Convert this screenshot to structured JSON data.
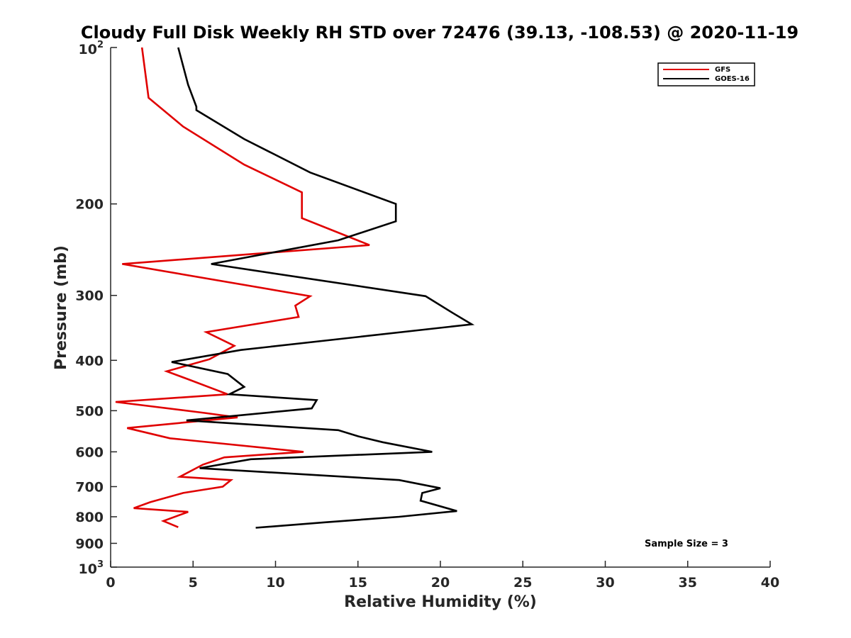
{
  "chart_data": {
    "type": "line",
    "title": "Cloudy Full Disk Weekly RH STD over 72476 (39.13, -108.53) @ 2020-11-19",
    "xlabel": "Relative Humidity (%)",
    "ylabel": "Pressure (mb)",
    "xlim": [
      0,
      40
    ],
    "ylim": [
      100,
      1000
    ],
    "y_scale": "log",
    "y_reversed": true,
    "x_ticks": [
      "0",
      "5",
      "10",
      "15",
      "20",
      "25",
      "30",
      "35",
      "40"
    ],
    "y_ticks": [
      {
        "value": 100,
        "base": "10",
        "exp": "2"
      },
      {
        "value": 200,
        "label": "200"
      },
      {
        "value": 300,
        "label": "300"
      },
      {
        "value": 400,
        "label": "400"
      },
      {
        "value": 500,
        "label": "500"
      },
      {
        "value": 600,
        "label": "600"
      },
      {
        "value": 700,
        "label": "700"
      },
      {
        "value": 800,
        "label": "800"
      },
      {
        "value": 900,
        "label": "900"
      },
      {
        "value": 1000,
        "base": "10",
        "exp": "3"
      }
    ],
    "grid": false,
    "legend_position": "top-right",
    "series": [
      {
        "name": "GFS",
        "color": "#e00000",
        "points": [
          [
            1.9,
            100
          ],
          [
            2.3,
            125
          ],
          [
            4.4,
            142
          ],
          [
            8.1,
            168
          ],
          [
            11.6,
            190
          ],
          [
            11.6,
            213
          ],
          [
            15.7,
            240
          ],
          [
            0.7,
            261
          ],
          [
            12.1,
            301
          ],
          [
            11.2,
            314
          ],
          [
            11.4,
            330
          ],
          [
            5.8,
            353
          ],
          [
            7.5,
            375
          ],
          [
            6.0,
            398
          ],
          [
            3.4,
            420
          ],
          [
            4.7,
            435
          ],
          [
            7.1,
            465
          ],
          [
            0.3,
            481
          ],
          [
            5.7,
            505
          ],
          [
            7.7,
            515
          ],
          [
            1.0,
            540
          ],
          [
            3.6,
            565
          ],
          [
            11.7,
            600
          ],
          [
            6.9,
            615
          ],
          [
            5.6,
            635
          ],
          [
            4.2,
            670
          ],
          [
            7.3,
            680
          ],
          [
            6.8,
            700
          ],
          [
            4.4,
            720
          ],
          [
            2.4,
            750
          ],
          [
            1.4,
            770
          ],
          [
            4.7,
            783
          ],
          [
            3.2,
            815
          ],
          [
            4.1,
            838
          ]
        ]
      },
      {
        "name": "GOES-16",
        "color": "#000000",
        "points": [
          [
            4.1,
            100
          ],
          [
            4.7,
            118
          ],
          [
            5.2,
            130
          ],
          [
            5.2,
            132
          ],
          [
            8.1,
            150
          ],
          [
            12.1,
            174
          ],
          [
            17.3,
            200
          ],
          [
            17.3,
            216
          ],
          [
            13.8,
            235
          ],
          [
            6.1,
            261
          ],
          [
            19.1,
            301
          ],
          [
            20.8,
            325
          ],
          [
            21.9,
            341
          ],
          [
            7.9,
            382
          ],
          [
            3.7,
            403
          ],
          [
            7.1,
            425
          ],
          [
            8.1,
            450
          ],
          [
            7.2,
            465
          ],
          [
            12.5,
            477
          ],
          [
            12.2,
            495
          ],
          [
            4.6,
            522
          ],
          [
            13.8,
            545
          ],
          [
            15.0,
            560
          ],
          [
            16.5,
            575
          ],
          [
            19.5,
            600
          ],
          [
            8.5,
            620
          ],
          [
            5.4,
            645
          ],
          [
            17.5,
            680
          ],
          [
            20.0,
            705
          ],
          [
            18.9,
            720
          ],
          [
            18.8,
            745
          ],
          [
            21.0,
            780
          ],
          [
            17.5,
            800
          ],
          [
            13.0,
            820
          ],
          [
            8.8,
            840
          ]
        ]
      }
    ],
    "annotations": [
      "Sample Size = 3"
    ]
  }
}
